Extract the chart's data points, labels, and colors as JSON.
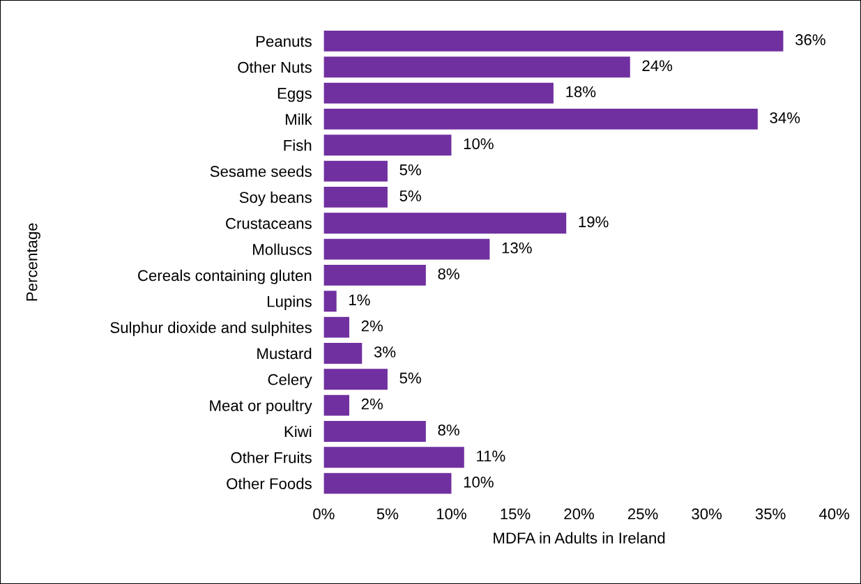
{
  "chart_data": {
    "type": "bar",
    "orientation": "horizontal",
    "xlabel": "MDFA in Adults in Ireland",
    "ylabel": "Percentage",
    "categories": [
      "Peanuts",
      "Other Nuts",
      "Eggs",
      "Milk",
      "Fish",
      "Sesame seeds",
      "Soy beans",
      "Crustaceans",
      "Molluscs",
      "Cereals containing gluten",
      "Lupins",
      "Sulphur dioxide and sulphites",
      "Mustard",
      "Celery",
      "Meat or poultry",
      "Kiwi",
      "Other Fruits",
      "Other Foods"
    ],
    "values": [
      36,
      24,
      18,
      34,
      10,
      5,
      5,
      19,
      13,
      8,
      1,
      2,
      3,
      5,
      2,
      8,
      11,
      10
    ],
    "value_labels": [
      "36%",
      "24%",
      "18%",
      "34%",
      "10%",
      "5%",
      "5%",
      "19%",
      "13%",
      "8%",
      "1%",
      "2%",
      "3%",
      "5%",
      "2%",
      "8%",
      "11%",
      "10%"
    ],
    "color": "#7030a0",
    "xlim": [
      0,
      40
    ],
    "xticks": [
      {
        "value": 0,
        "label": "0%"
      },
      {
        "value": 5,
        "label": "5%"
      },
      {
        "value": 10,
        "label": "10%"
      },
      {
        "value": 15,
        "label": "15%"
      },
      {
        "value": 20,
        "label": "20%"
      },
      {
        "value": 25,
        "label": "25%"
      },
      {
        "value": 30,
        "label": "30%"
      },
      {
        "value": 35,
        "label": "35%"
      },
      {
        "value": 40,
        "label": "40%"
      }
    ],
    "grid": false,
    "legend": false
  }
}
